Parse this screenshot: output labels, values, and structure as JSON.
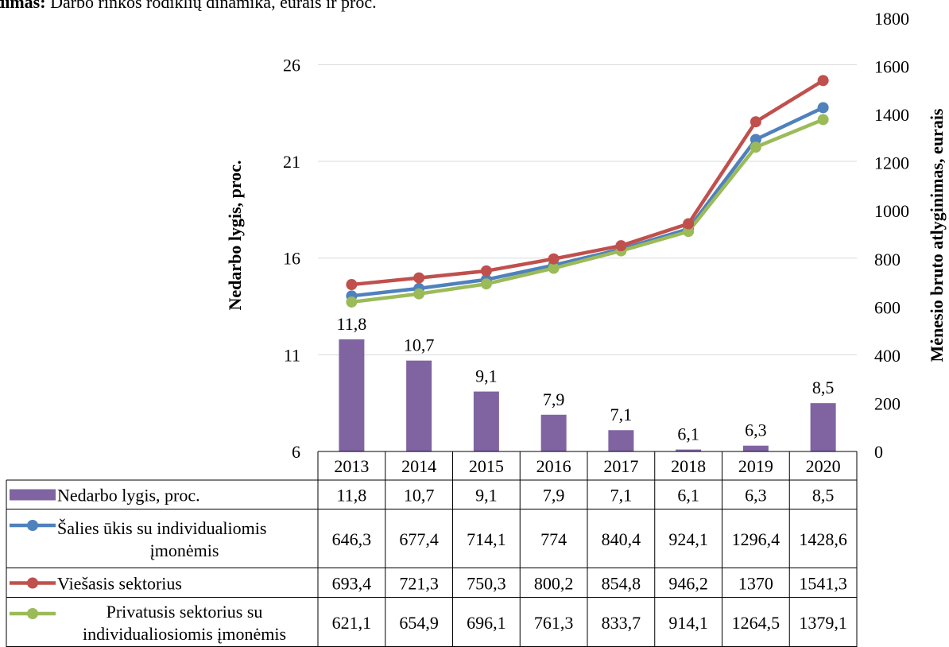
{
  "caption": {
    "bold": "dimas:",
    "text": " Darbo rinkos rodiklių dinamika, eurais ir proc."
  },
  "chart_data": {
    "type": "bar",
    "categories": [
      "2013",
      "2014",
      "2015",
      "2016",
      "2017",
      "2018",
      "2019",
      "2020"
    ],
    "left_axis": {
      "label": "Nedarbo lygis, proc.",
      "ticks": [
        "6",
        "11",
        "16",
        "21",
        "26"
      ],
      "range": [
        6,
        28.4
      ]
    },
    "right_axis": {
      "label": "Mėnesio bruto atlyginimas, eurais",
      "ticks": [
        "0",
        "200",
        "400",
        "600",
        "800",
        "1000",
        "1200",
        "1400",
        "1600",
        "1800"
      ],
      "range": [
        0,
        1800
      ]
    },
    "grid": true,
    "series": [
      {
        "name": "Nedarbo lygis, proc.",
        "type": "bar",
        "axis": "left",
        "color": "#8064a2",
        "values": [
          11.8,
          10.7,
          9.1,
          7.9,
          7.1,
          6.1,
          6.3,
          8.5
        ],
        "labels": [
          "11,8",
          "10,7",
          "9,1",
          "7,9",
          "7,1",
          "6,1",
          "6,3",
          "8,5"
        ]
      },
      {
        "name": "Šalies ūkis su individualiomis įmonėmis",
        "type": "line",
        "axis": "right",
        "color": "#4f81bd",
        "values": [
          646.3,
          677.4,
          714.1,
          774,
          840.4,
          924.1,
          1296.4,
          1428.6
        ],
        "labels": [
          "646,3",
          "677,4",
          "714,1",
          "774",
          "840,4",
          "924,1",
          "1296,4",
          "1428,6"
        ]
      },
      {
        "name": "Viešasis sektorius",
        "type": "line",
        "axis": "right",
        "color": "#c0504d",
        "values": [
          693.4,
          721.3,
          750.3,
          800.2,
          854.8,
          946.2,
          1370,
          1541.3
        ],
        "labels": [
          "693,4",
          "721,3",
          "750,3",
          "800,2",
          "854,8",
          "946,2",
          "1370",
          "1541,3"
        ]
      },
      {
        "name": "Privatusis sektorius su individualiosiomis įmonėmis",
        "type": "line",
        "axis": "right",
        "color": "#9bbb59",
        "values": [
          621.1,
          654.9,
          696.1,
          761.3,
          833.7,
          914.1,
          1264.5,
          1379.1
        ],
        "labels": [
          "621,1",
          "654,9",
          "696,1",
          "761,3",
          "833,7",
          "914,1",
          "1264,5",
          "1379,1"
        ]
      }
    ],
    "table": {
      "rows": [
        {
          "legend": [
            "Nedarbo lygis, proc."
          ],
          "series_index": 0
        },
        {
          "legend": [
            "Šalies ūkis su individualiomis",
            "įmonėmis"
          ],
          "series_index": 1
        },
        {
          "legend": [
            "Viešasis sektorius"
          ],
          "series_index": 2
        },
        {
          "legend": [
            "Privatusis sektorius su",
            "individualiosiomis įmonėmis"
          ],
          "series_index": 3
        }
      ]
    }
  }
}
